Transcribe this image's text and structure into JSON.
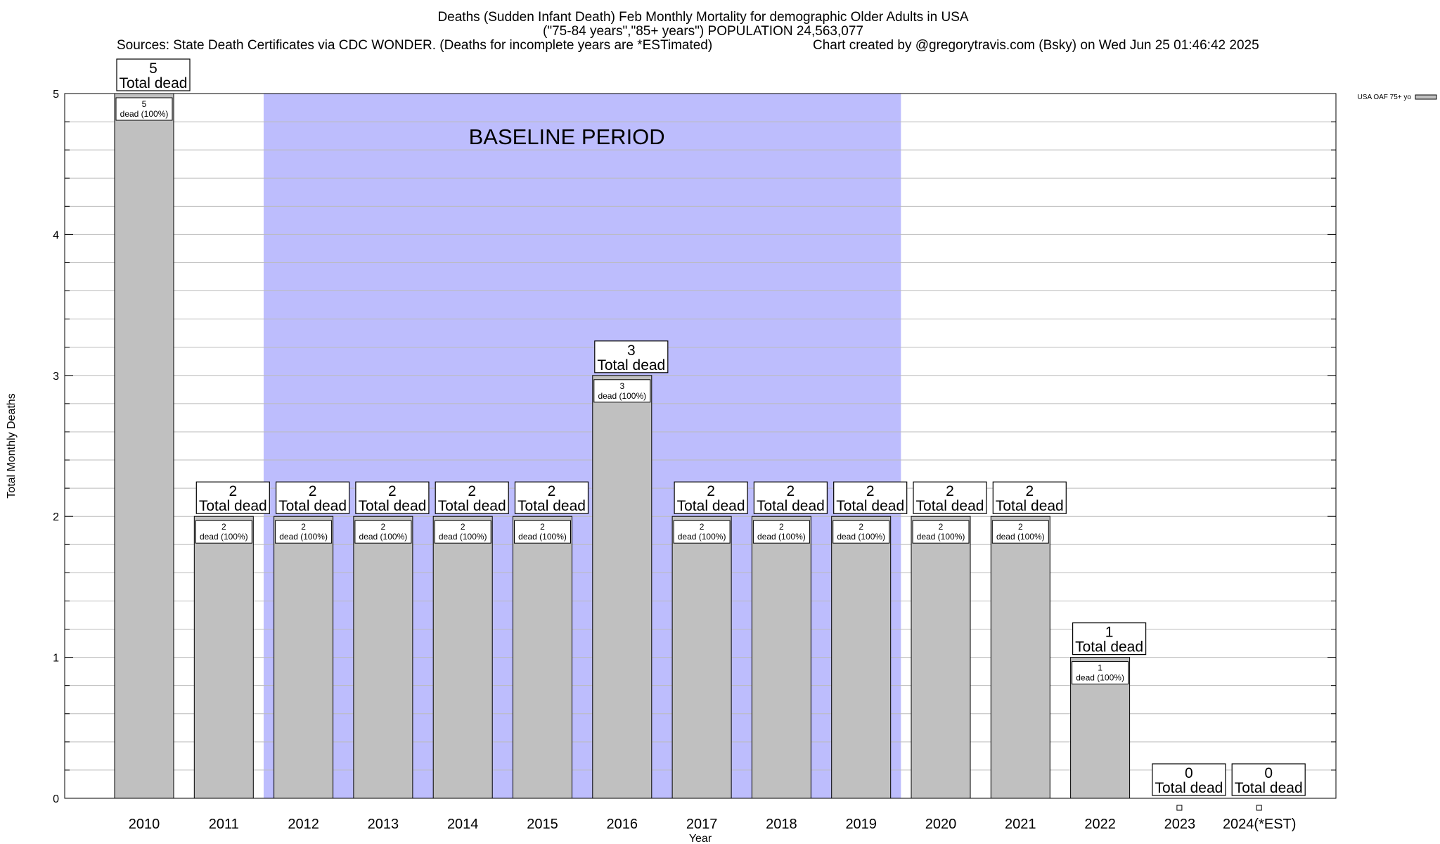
{
  "chart_data": {
    "type": "bar",
    "title_lines": [
      "Deaths (Sudden Infant Death) Feb Monthly Mortality for demographic Older Adults in USA",
      "(\"75-84 years\",\"85+ years\") POPULATION 24,563,077"
    ],
    "sources": "Sources: State Death Certificates via CDC WONDER. (Deaths for incomplete years are *ESTimated)",
    "credit": "Chart created by @gregorytravis.com (Bsky) on Wed Jun 25 01:46:42 2025",
    "xlabel": "Year",
    "ylabel": "Total Monthly Deaths",
    "categories": [
      "2010",
      "2011",
      "2012",
      "2013",
      "2014",
      "2015",
      "2016",
      "2017",
      "2018",
      "2019",
      "2020",
      "2021",
      "2022",
      "2023",
      "2024(*EST)"
    ],
    "series": [
      {
        "name": "USA OAF 75+ yo",
        "values": [
          5,
          2,
          2,
          2,
          2,
          2,
          3,
          2,
          2,
          2,
          2,
          2,
          1,
          0,
          0
        ]
      }
    ],
    "ylim": [
      0,
      5
    ],
    "yticks": [
      0,
      1,
      2,
      3,
      4,
      5
    ],
    "total_label_line2": "Total dead",
    "inner_label_suffix": "dead (100%)",
    "baseline": {
      "label": "BASELINE PERIOD",
      "from": "2012",
      "to": "2019",
      "color": "#bdbdfd"
    },
    "bar_color": "#c0c0c0",
    "grid": true,
    "legend_position": "top-right"
  }
}
